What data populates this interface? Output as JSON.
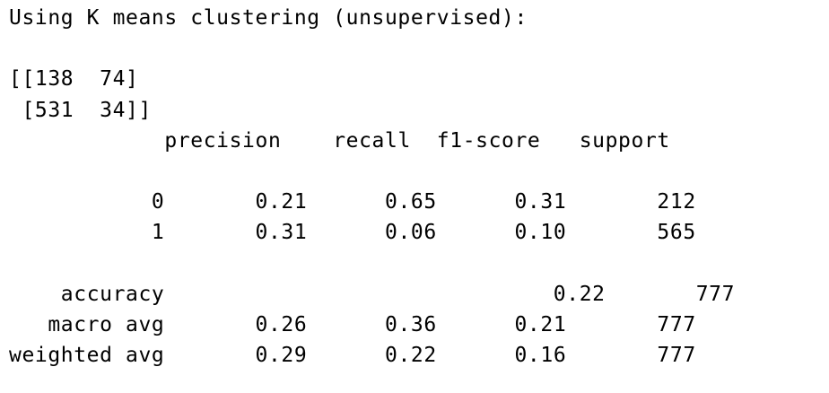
{
  "output": {
    "header": "Using K means clustering (unsupervised):",
    "confusion_matrix": [
      "[[138  74]",
      " [531  34]]"
    ],
    "report": {
      "columns": [
        "precision",
        "recall",
        "f1-score",
        "support"
      ],
      "rows": [
        {
          "label": "0",
          "precision": "0.21",
          "recall": "0.65",
          "f1": "0.31",
          "support": "212"
        },
        {
          "label": "1",
          "precision": "0.31",
          "recall": "0.06",
          "f1": "0.10",
          "support": "565"
        }
      ],
      "summary": [
        {
          "label": "accuracy",
          "precision": "",
          "recall": "",
          "f1": "0.22",
          "support": "777"
        },
        {
          "label": "macro avg",
          "precision": "0.26",
          "recall": "0.36",
          "f1": "0.21",
          "support": "777"
        },
        {
          "label": "weighted avg",
          "precision": "0.29",
          "recall": "0.22",
          "f1": "0.16",
          "support": "777"
        }
      ]
    }
  }
}
